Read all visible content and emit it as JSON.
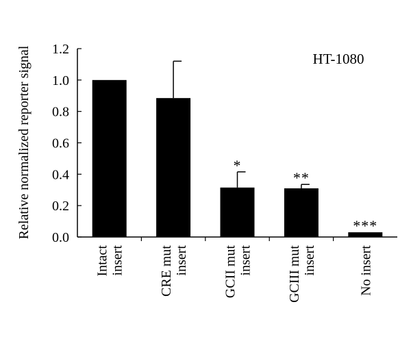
{
  "chart_data": {
    "type": "bar",
    "title": "",
    "annotation": "HT-1080",
    "xlabel": "",
    "ylabel": "Relative normalized reporter signal",
    "ylim": [
      0,
      1.2
    ],
    "yticks": [
      "0.0",
      "0.2",
      "0.4",
      "0.6",
      "0.8",
      "1.0",
      "1.2"
    ],
    "categories": [
      [
        "Intact",
        "insert"
      ],
      [
        "CRE mut",
        "insert"
      ],
      [
        "GCII mut",
        "insert"
      ],
      [
        "GCIII mut",
        "insert"
      ],
      [
        "No insert"
      ]
    ],
    "values": [
      1.0,
      0.885,
      0.315,
      0.31,
      0.03
    ],
    "errors": [
      0,
      0.235,
      0.1,
      0.025,
      0
    ],
    "significance": [
      "",
      "",
      "*",
      "**",
      "***"
    ],
    "bar_color": "#000000",
    "grid": false,
    "legend": "none"
  }
}
